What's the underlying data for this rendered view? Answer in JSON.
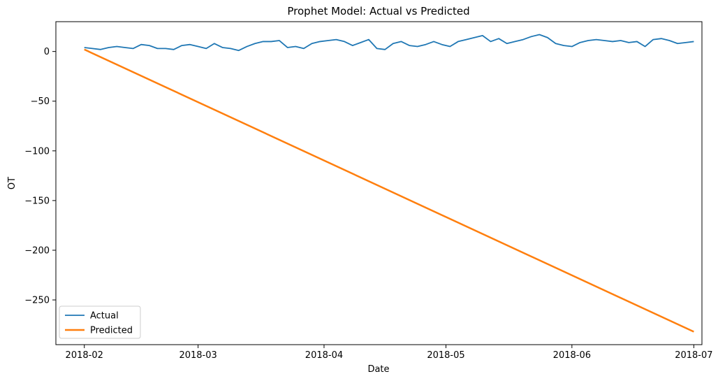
{
  "chart_data": {
    "type": "line",
    "title": "Prophet Model: Actual vs Predicted",
    "xlabel": "Date",
    "ylabel": "OT",
    "xlim": [
      "2018-01-25",
      "2018-07-03"
    ],
    "ylim": [
      -295,
      30
    ],
    "x_ticks": [
      "2018-02-01",
      "2018-03-01",
      "2018-04-01",
      "2018-05-01",
      "2018-06-01",
      "2018-07-01"
    ],
    "x_tick_labels": [
      "2018-02",
      "2018-03",
      "2018-04",
      "2018-05",
      "2018-06",
      "2018-07"
    ],
    "y_ticks": [
      0,
      -50,
      -100,
      -150,
      -200,
      -250
    ],
    "y_tick_labels": [
      "0",
      "−50",
      "−100",
      "−150",
      "−200",
      "−250"
    ],
    "grid": false,
    "legend_position": "lower-left",
    "series": [
      {
        "name": "Actual",
        "color": "#1f77b4",
        "points": [
          [
            "2018-02-01",
            4
          ],
          [
            "2018-02-03",
            3
          ],
          [
            "2018-02-05",
            2
          ],
          [
            "2018-02-07",
            4
          ],
          [
            "2018-02-09",
            5
          ],
          [
            "2018-02-11",
            4
          ],
          [
            "2018-02-13",
            3
          ],
          [
            "2018-02-15",
            7
          ],
          [
            "2018-02-17",
            6
          ],
          [
            "2018-02-19",
            3
          ],
          [
            "2018-02-21",
            3
          ],
          [
            "2018-02-23",
            2
          ],
          [
            "2018-02-25",
            6
          ],
          [
            "2018-02-27",
            7
          ],
          [
            "2018-03-01",
            5
          ],
          [
            "2018-03-03",
            3
          ],
          [
            "2018-03-05",
            8
          ],
          [
            "2018-03-07",
            4
          ],
          [
            "2018-03-09",
            3
          ],
          [
            "2018-03-11",
            1
          ],
          [
            "2018-03-13",
            5
          ],
          [
            "2018-03-15",
            8
          ],
          [
            "2018-03-17",
            10
          ],
          [
            "2018-03-19",
            10
          ],
          [
            "2018-03-21",
            11
          ],
          [
            "2018-03-23",
            4
          ],
          [
            "2018-03-25",
            5
          ],
          [
            "2018-03-27",
            3
          ],
          [
            "2018-03-29",
            8
          ],
          [
            "2018-03-31",
            10
          ],
          [
            "2018-04-02",
            11
          ],
          [
            "2018-04-04",
            12
          ],
          [
            "2018-04-06",
            10
          ],
          [
            "2018-04-08",
            6
          ],
          [
            "2018-04-10",
            9
          ],
          [
            "2018-04-12",
            12
          ],
          [
            "2018-04-14",
            3
          ],
          [
            "2018-04-16",
            2
          ],
          [
            "2018-04-18",
            8
          ],
          [
            "2018-04-20",
            10
          ],
          [
            "2018-04-22",
            6
          ],
          [
            "2018-04-24",
            5
          ],
          [
            "2018-04-26",
            7
          ],
          [
            "2018-04-28",
            10
          ],
          [
            "2018-04-30",
            7
          ],
          [
            "2018-05-02",
            5
          ],
          [
            "2018-05-04",
            10
          ],
          [
            "2018-05-06",
            12
          ],
          [
            "2018-05-08",
            14
          ],
          [
            "2018-05-10",
            16
          ],
          [
            "2018-05-12",
            10
          ],
          [
            "2018-05-14",
            13
          ],
          [
            "2018-05-16",
            8
          ],
          [
            "2018-05-18",
            10
          ],
          [
            "2018-05-20",
            12
          ],
          [
            "2018-05-22",
            15
          ],
          [
            "2018-05-24",
            17
          ],
          [
            "2018-05-26",
            14
          ],
          [
            "2018-05-28",
            8
          ],
          [
            "2018-05-30",
            6
          ],
          [
            "2018-06-01",
            5
          ],
          [
            "2018-06-03",
            9
          ],
          [
            "2018-06-05",
            11
          ],
          [
            "2018-06-07",
            12
          ],
          [
            "2018-06-09",
            11
          ],
          [
            "2018-06-11",
            10
          ],
          [
            "2018-06-13",
            11
          ],
          [
            "2018-06-15",
            9
          ],
          [
            "2018-06-17",
            10
          ],
          [
            "2018-06-19",
            5
          ],
          [
            "2018-06-21",
            12
          ],
          [
            "2018-06-23",
            13
          ],
          [
            "2018-06-25",
            11
          ],
          [
            "2018-06-27",
            8
          ],
          [
            "2018-06-29",
            9
          ],
          [
            "2018-07-01",
            10
          ]
        ]
      },
      {
        "name": "Predicted",
        "color": "#ff7f0e",
        "points": [
          [
            "2018-02-01",
            2
          ],
          [
            "2018-07-01",
            -282
          ]
        ]
      }
    ]
  }
}
